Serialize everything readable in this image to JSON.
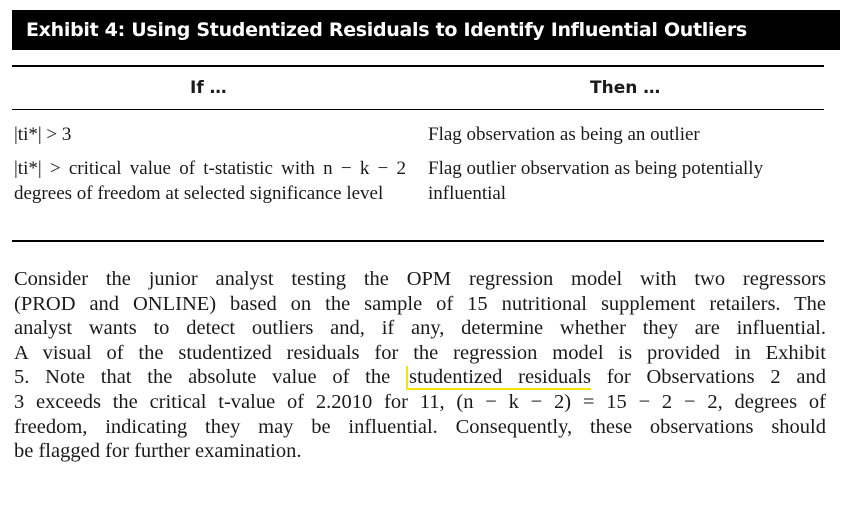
{
  "exhibit": {
    "title": "Exhibit 4: Using Studentized Residuals to Identify Influential Outliers"
  },
  "table": {
    "headers": [
      "If …",
      "Then …"
    ],
    "rows": [
      {
        "if": "|ti*| > 3",
        "then": "Flag observation as being an outlier"
      },
      {
        "if": "|ti*| > critical value of t-statistic with n − k − 2 degrees of freedom at selected significance level",
        "then": "Flag outlier observation as being potentially influential"
      }
    ]
  },
  "paragraph": {
    "lines": [
      "Consider the junior analyst testing the OPM regression model with two regressors",
      "(PROD and ONLINE) based on the sample of 15 nutritional supplement retailers. The",
      "analyst wants to detect outliers and, if any, determine whether they are influential.",
      "A visual of the studentized residuals for the regression model is provided in Exhibit",
      "5. Note that the absolute value of the",
      "studentized residuals",
      "for Observations 2 and",
      "3 exceeds the critical t-value of 2.2010 for 11, (n − k − 2) = 15 − 2 − 2, degrees of",
      "freedom, indicating they may be influential. Consequently, these observations should",
      "be flagged for further examination."
    ],
    "highlight_color": "#f5e400"
  }
}
